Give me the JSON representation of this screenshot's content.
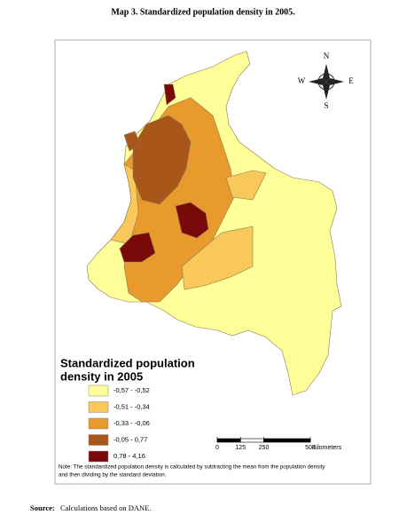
{
  "title": "Map 3. Standardized population density in 2005.",
  "legend": {
    "title_lines": [
      "Standardized population",
      "density in 2005"
    ],
    "entries": [
      {
        "label": "-0,57 - -0,52",
        "color": "#ffff99"
      },
      {
        "label": "-0,51 - -0,34",
        "color": "#f8c85a"
      },
      {
        "label": "-0,33 - -0,06",
        "color": "#e89a2c"
      },
      {
        "label": "-0,05 - 0,77",
        "color": "#a8561a"
      },
      {
        "label": "0,78 - 4,16",
        "color": "#7a0a0a"
      }
    ]
  },
  "compass": {
    "n": "N",
    "s": "S",
    "w": "W",
    "e": "E"
  },
  "scale_bar": {
    "ticks": [
      0,
      125,
      250,
      500
    ],
    "unit": "Kilometers"
  },
  "note_lines": [
    "Note: The standardized population density is calculated by subtracting the mean from the population density",
    "and then dividing by the standard deviation."
  ],
  "source": {
    "label": "Source:",
    "text": "Calculations based on DANE."
  }
}
